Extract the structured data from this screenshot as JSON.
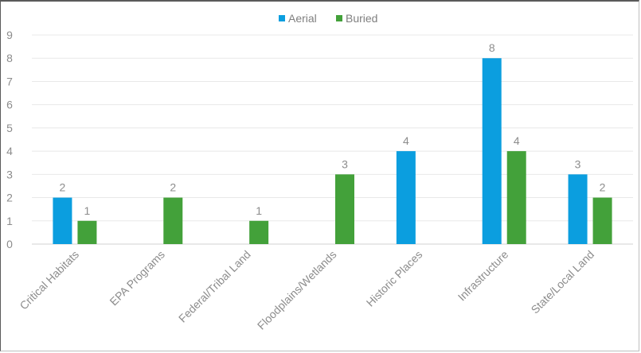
{
  "chart_data": {
    "type": "bar",
    "title": "",
    "xlabel": "",
    "ylabel": "",
    "ylim": [
      0,
      9
    ],
    "yticks": [
      0,
      1,
      2,
      3,
      4,
      5,
      6,
      7,
      8,
      9
    ],
    "grid": true,
    "legend": "top-center",
    "categories": [
      "Critical Habitats",
      "EPA Programs",
      "Federal/Tribal Land",
      "Floodplains/Wetlands",
      "Historic Places",
      "Infrastructure",
      "State/Local Land"
    ],
    "series": [
      {
        "name": "Aerial",
        "color": "#0b9edf",
        "values": [
          2,
          0,
          0,
          0,
          4,
          8,
          3
        ]
      },
      {
        "name": "Buried",
        "color": "#43a13a",
        "values": [
          1,
          2,
          1,
          3,
          0,
          4,
          2
        ]
      }
    ]
  }
}
